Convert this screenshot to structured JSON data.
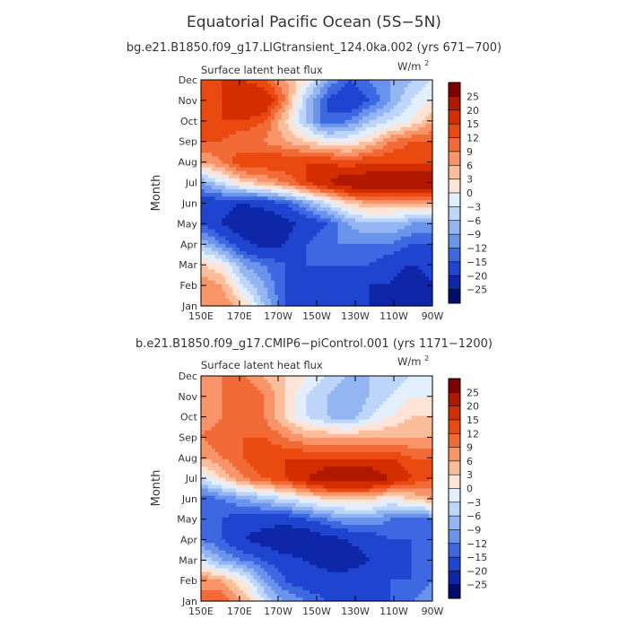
{
  "title": "Equatorial Pacific Ocean (5S−5N)",
  "colorbar": {
    "levels": [
      "25",
      "20",
      "15",
      "12",
      "9",
      "6",
      "3",
      "0",
      "−3",
      "−6",
      "−9",
      "−12",
      "−15",
      "−20",
      "−25"
    ],
    "colors": [
      "#800000",
      "#b01800",
      "#d42e00",
      "#ea4a10",
      "#f26a36",
      "#f99468",
      "#fbbd9a",
      "#fde4d6",
      "#e2eefc",
      "#bcd5f8",
      "#93b6f2",
      "#6a93ec",
      "#3e68e2",
      "#1e44d0",
      "#0e26a8",
      "#000c6e"
    ]
  },
  "chart_data": [
    {
      "type": "heatmap",
      "subtitle": "bg.e21.B1850.f09_g17.LIGtransient_124.0ka.002 (yrs 671−700)",
      "variable": "Surface latent heat flux",
      "units_base": "W/m",
      "units_exp": "2",
      "xlabels": [
        "150E",
        "170E",
        "170W",
        "150W",
        "130W",
        "110W",
        "90W"
      ],
      "ylabels": [
        "Jan",
        "Feb",
        "Mar",
        "Apr",
        "May",
        "Jun",
        "Jul",
        "Aug",
        "Sep",
        "Oct",
        "Nov",
        "Dec"
      ],
      "ylabel": "Month",
      "z": [
        [
          6,
          9,
          3,
          -6,
          -15,
          -18,
          -20,
          -18,
          -20,
          -22,
          -25,
          -20
        ],
        [
          9,
          6,
          -3,
          -9,
          -15,
          -18,
          -18,
          -18,
          -20,
          -20,
          -25,
          -20
        ],
        [
          3,
          0,
          -9,
          -12,
          -15,
          -15,
          -15,
          -15,
          -15,
          -18,
          -20,
          -18
        ],
        [
          -6,
          -12,
          -18,
          -22,
          -20,
          -15,
          -12,
          -12,
          -12,
          -12,
          -15,
          -15
        ],
        [
          -15,
          -20,
          -25,
          -25,
          -22,
          -18,
          -15,
          -9,
          -6,
          -6,
          -9,
          -9
        ],
        [
          -18,
          -18,
          -20,
          -18,
          -15,
          -9,
          -3,
          3,
          6,
          6,
          6,
          6
        ],
        [
          -9,
          -3,
          3,
          6,
          9,
          15,
          20,
          25,
          25,
          25,
          25,
          25
        ],
        [
          6,
          9,
          15,
          15,
          15,
          15,
          15,
          12,
          15,
          15,
          15,
          15
        ],
        [
          12,
          12,
          9,
          9,
          6,
          3,
          0,
          0,
          3,
          9,
          12,
          12
        ],
        [
          15,
          15,
          15,
          12,
          3,
          -6,
          -15,
          -12,
          -6,
          -3,
          0,
          6
        ],
        [
          12,
          15,
          20,
          20,
          9,
          -6,
          -15,
          -20,
          -15,
          -9,
          -3,
          0
        ],
        [
          12,
          15,
          15,
          12,
          6,
          0,
          -9,
          -15,
          -12,
          -9,
          -6,
          -3
        ]
      ]
    },
    {
      "type": "heatmap",
      "subtitle": "b.e21.B1850.f09_g17.CMIP6−piControl.001 (yrs 1171−1200)",
      "variable": "Surface latent heat flux",
      "units_base": "W/m",
      "units_exp": "2",
      "xlabels": [
        "150E",
        "170E",
        "170W",
        "150W",
        "130W",
        "110W",
        "90W"
      ],
      "ylabels": [
        "Jan",
        "Feb",
        "Mar",
        "Apr",
        "May",
        "Jun",
        "Jul",
        "Aug",
        "Sep",
        "Oct",
        "Nov",
        "Dec"
      ],
      "ylabel": "Month",
      "z": [
        [
          9,
          12,
          6,
          -3,
          -9,
          -12,
          -15,
          -15,
          -15,
          -15,
          -12,
          -9
        ],
        [
          9,
          6,
          0,
          -9,
          -15,
          -18,
          -18,
          -18,
          -18,
          -15,
          -15,
          -12
        ],
        [
          -3,
          -9,
          -12,
          -15,
          -18,
          -20,
          -22,
          -22,
          -20,
          -18,
          -15,
          -15
        ],
        [
          -12,
          -15,
          -20,
          -22,
          -25,
          -25,
          -22,
          -20,
          -18,
          -15,
          -15,
          -15
        ],
        [
          -15,
          -15,
          -18,
          -18,
          -18,
          -15,
          -12,
          -9,
          -9,
          -12,
          -12,
          -12
        ],
        [
          -15,
          -12,
          -9,
          -6,
          -3,
          0,
          3,
          3,
          3,
          0,
          3,
          6
        ],
        [
          -3,
          3,
          9,
          12,
          15,
          20,
          25,
          25,
          25,
          20,
          15,
          12
        ],
        [
          6,
          9,
          12,
          15,
          15,
          15,
          15,
          15,
          15,
          15,
          12,
          12
        ],
        [
          9,
          12,
          12,
          12,
          9,
          6,
          6,
          6,
          6,
          6,
          6,
          6
        ],
        [
          6,
          9,
          12,
          9,
          3,
          -3,
          -6,
          -9,
          -3,
          0,
          3,
          3
        ],
        [
          6,
          9,
          12,
          9,
          3,
          -3,
          -6,
          -9,
          -6,
          -3,
          0,
          0
        ],
        [
          6,
          9,
          9,
          6,
          3,
          0,
          -3,
          -6,
          -6,
          -6,
          -3,
          -3
        ]
      ]
    }
  ]
}
